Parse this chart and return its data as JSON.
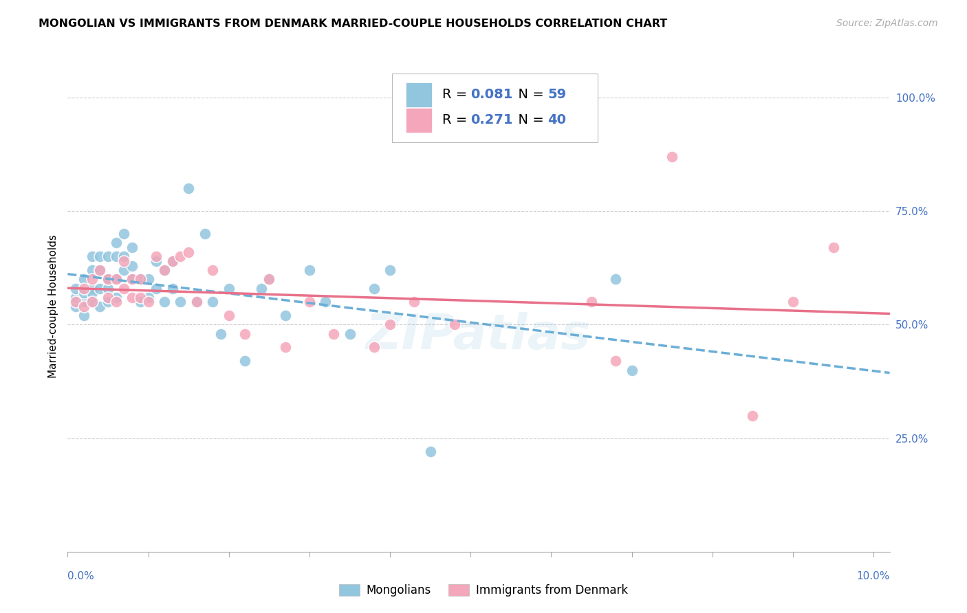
{
  "title": "MONGOLIAN VS IMMIGRANTS FROM DENMARK MARRIED-COUPLE HOUSEHOLDS CORRELATION CHART",
  "source": "Source: ZipAtlas.com",
  "ylabel": "Married-couple Households",
  "mongolian_color": "#92c5de",
  "denmark_color": "#f4a6ba",
  "mongolian_trend_color": "#6baed6",
  "denmark_trend_color": "#e8718a",
  "watermark": "ZIPatlas",
  "mongolians_label": "Mongolians",
  "denmark_label": "Immigrants from Denmark",
  "R_mongolian": "0.081",
  "N_mongolian": "59",
  "R_denmark": "0.271",
  "N_denmark": "40",
  "xlim": [
    0.0,
    0.102
  ],
  "ylim": [
    0.0,
    1.08
  ],
  "xtick_left": "0.0%",
  "xtick_right": "10.0%",
  "ytick_vals": [
    0.0,
    0.25,
    0.5,
    0.75,
    1.0
  ],
  "ytick_labels": [
    "",
    "25.0%",
    "50.0%",
    "75.0%",
    "100.0%"
  ],
  "mongolian_x": [
    0.001,
    0.001,
    0.001,
    0.002,
    0.002,
    0.002,
    0.002,
    0.003,
    0.003,
    0.003,
    0.003,
    0.003,
    0.004,
    0.004,
    0.004,
    0.004,
    0.005,
    0.005,
    0.005,
    0.005,
    0.006,
    0.006,
    0.006,
    0.006,
    0.007,
    0.007,
    0.007,
    0.008,
    0.008,
    0.008,
    0.009,
    0.009,
    0.01,
    0.01,
    0.011,
    0.011,
    0.012,
    0.012,
    0.013,
    0.013,
    0.014,
    0.015,
    0.016,
    0.017,
    0.018,
    0.019,
    0.02,
    0.022,
    0.024,
    0.025,
    0.027,
    0.03,
    0.032,
    0.035,
    0.038,
    0.04,
    0.045,
    0.068,
    0.07
  ],
  "mongolian_y": [
    0.54,
    0.56,
    0.58,
    0.52,
    0.55,
    0.57,
    0.6,
    0.55,
    0.58,
    0.62,
    0.65,
    0.57,
    0.54,
    0.58,
    0.62,
    0.65,
    0.55,
    0.58,
    0.6,
    0.65,
    0.56,
    0.6,
    0.65,
    0.68,
    0.62,
    0.65,
    0.7,
    0.6,
    0.63,
    0.67,
    0.55,
    0.6,
    0.56,
    0.6,
    0.64,
    0.58,
    0.55,
    0.62,
    0.58,
    0.64,
    0.55,
    0.8,
    0.55,
    0.7,
    0.55,
    0.48,
    0.58,
    0.42,
    0.58,
    0.6,
    0.52,
    0.62,
    0.55,
    0.48,
    0.58,
    0.62,
    0.22,
    0.6,
    0.4
  ],
  "denmark_x": [
    0.001,
    0.002,
    0.002,
    0.003,
    0.003,
    0.004,
    0.005,
    0.005,
    0.006,
    0.006,
    0.007,
    0.007,
    0.008,
    0.008,
    0.009,
    0.009,
    0.01,
    0.011,
    0.012,
    0.013,
    0.014,
    0.015,
    0.016,
    0.018,
    0.02,
    0.022,
    0.025,
    0.027,
    0.03,
    0.033,
    0.038,
    0.04,
    0.043,
    0.048,
    0.065,
    0.068,
    0.075,
    0.085,
    0.09,
    0.095
  ],
  "denmark_y": [
    0.55,
    0.54,
    0.58,
    0.55,
    0.6,
    0.62,
    0.56,
    0.6,
    0.55,
    0.6,
    0.58,
    0.64,
    0.56,
    0.6,
    0.56,
    0.6,
    0.55,
    0.65,
    0.62,
    0.64,
    0.65,
    0.66,
    0.55,
    0.62,
    0.52,
    0.48,
    0.6,
    0.45,
    0.55,
    0.48,
    0.45,
    0.5,
    0.55,
    0.5,
    0.55,
    0.42,
    0.87,
    0.3,
    0.55,
    0.67
  ]
}
